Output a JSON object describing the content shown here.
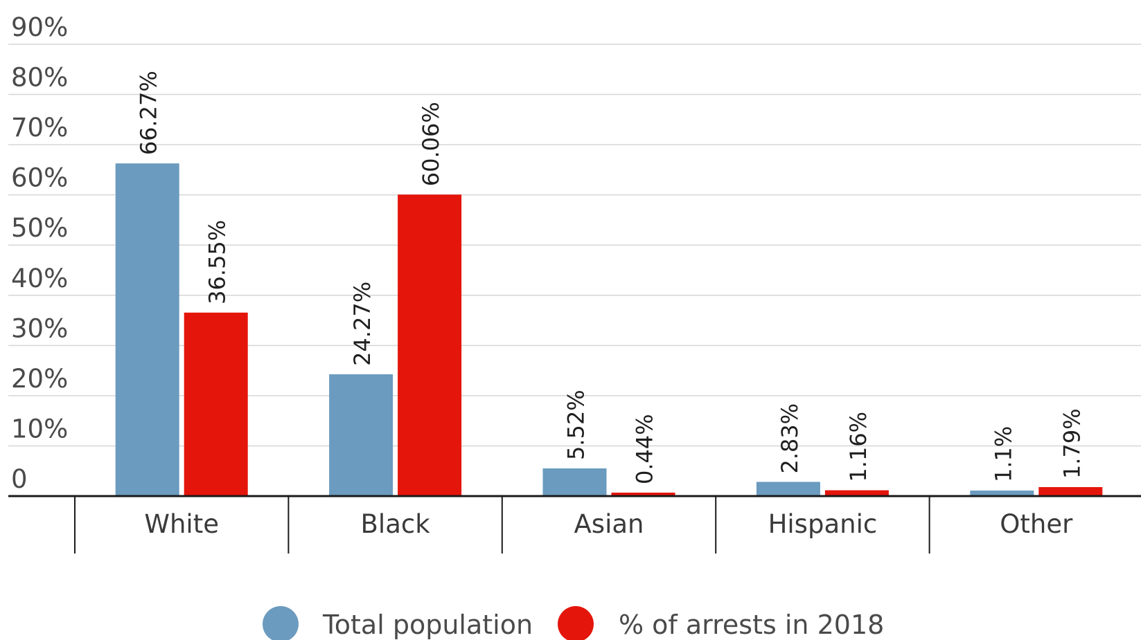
{
  "chart_data": {
    "type": "bar",
    "title": "",
    "xlabel": "",
    "ylabel": "",
    "categories": [
      "White",
      "Black",
      "Asian",
      "Hispanic",
      "Other"
    ],
    "series": [
      {
        "name": "Total population",
        "color": "#6b9bbf",
        "values": [
          66.27,
          24.27,
          5.52,
          2.83,
          1.1
        ],
        "labels": [
          "66.27%",
          "24.27%",
          "5.52%",
          "2.83%",
          "1.1%"
        ]
      },
      {
        "name": "% of arrests in 2018",
        "color": "#e4150b",
        "values": [
          36.55,
          60.06,
          0.44,
          1.16,
          1.79
        ],
        "labels": [
          "36.55%",
          "60.06%",
          "0.44%",
          "1.16%",
          "1.79%"
        ]
      }
    ],
    "ylim": [
      0,
      90
    ],
    "yticks": [
      {
        "value": 0,
        "label": "0"
      },
      {
        "value": 10,
        "label": "10%"
      },
      {
        "value": 20,
        "label": "20%"
      },
      {
        "value": 30,
        "label": "30%"
      },
      {
        "value": 40,
        "label": "40%"
      },
      {
        "value": 50,
        "label": "50%"
      },
      {
        "value": 60,
        "label": "60%"
      },
      {
        "value": 70,
        "label": "70%"
      },
      {
        "value": 80,
        "label": "80%"
      },
      {
        "value": 90,
        "label": "90%"
      }
    ],
    "grid": true,
    "legend_position": "bottom-center"
  }
}
